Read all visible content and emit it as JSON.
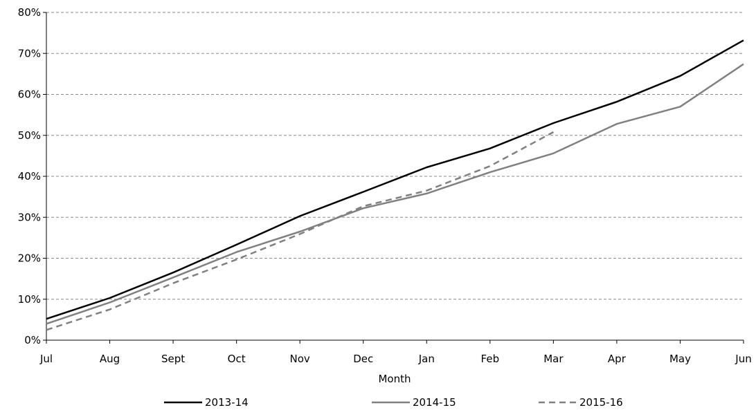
{
  "chart_data": {
    "type": "line",
    "title": "",
    "xlabel": "Month",
    "ylabel": "",
    "categories": [
      "Jul",
      "Aug",
      "Sept",
      "Oct",
      "Nov",
      "Dec",
      "Jan",
      "Feb",
      "Mar",
      "Apr",
      "May",
      "Jun"
    ],
    "ylim": [
      0,
      80
    ],
    "yticks": [
      "0%",
      "10%",
      "20%",
      "30%",
      "40%",
      "50%",
      "60%",
      "70%",
      "80%"
    ],
    "grid": "horizontal dashed",
    "legend_position": "bottom",
    "series": [
      {
        "name": "2013-14",
        "style": "solid",
        "color": "#000000",
        "values": [
          5.2,
          10.3,
          16.5,
          23.3,
          30.3,
          36.2,
          42.2,
          46.8,
          53.0,
          58.2,
          64.5,
          73.2
        ]
      },
      {
        "name": "2014-15",
        "style": "solid",
        "color": "#808080",
        "values": [
          4.0,
          9.2,
          15.3,
          21.5,
          26.5,
          32.2,
          35.8,
          41.0,
          45.6,
          52.8,
          57.0,
          67.4
        ]
      },
      {
        "name": "2015-16",
        "style": "dashed",
        "color": "#808080",
        "values": [
          2.5,
          7.5,
          13.9,
          19.7,
          25.9,
          32.7,
          36.5,
          42.5,
          50.8,
          null,
          null,
          null
        ]
      }
    ]
  }
}
